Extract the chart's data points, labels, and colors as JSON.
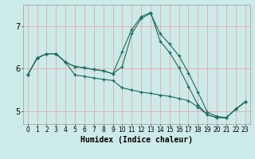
{
  "xlabel": "Humidex (Indice chaleur)",
  "ylabel": "",
  "xlim": [
    -0.5,
    23.5
  ],
  "ylim": [
    4.7,
    7.5
  ],
  "bg_color": "#cceae8",
  "grid_color": "#e8a8a8",
  "line_color": "#1a6b60",
  "line1_x": [
    0,
    1,
    2,
    3,
    4,
    5,
    6,
    7,
    8,
    9,
    10,
    11,
    12,
    13,
    14,
    15,
    16,
    17,
    18,
    19,
    20,
    21,
    22,
    23
  ],
  "line1_y": [
    5.85,
    6.25,
    6.35,
    6.35,
    6.15,
    5.85,
    5.82,
    5.78,
    5.75,
    5.72,
    5.55,
    5.5,
    5.45,
    5.42,
    5.38,
    5.35,
    5.3,
    5.25,
    5.1,
    4.92,
    4.85,
    4.85,
    5.05,
    5.22
  ],
  "line2_x": [
    0,
    1,
    2,
    3,
    4,
    5,
    6,
    7,
    8,
    9,
    10,
    11,
    12,
    13,
    14,
    15,
    16,
    17,
    18,
    19,
    20,
    21,
    22,
    23
  ],
  "line2_y": [
    5.85,
    6.25,
    6.35,
    6.35,
    6.15,
    6.05,
    6.02,
    5.98,
    5.95,
    5.88,
    6.05,
    6.82,
    7.18,
    7.3,
    6.82,
    6.58,
    6.3,
    5.9,
    5.45,
    4.98,
    4.88,
    4.85,
    5.05,
    5.22
  ],
  "line3_x": [
    0,
    1,
    2,
    3,
    4,
    5,
    6,
    7,
    8,
    9,
    10,
    11,
    12,
    13,
    14,
    15,
    16,
    17,
    18,
    19,
    20,
    21,
    22,
    23
  ],
  "line3_y": [
    5.85,
    6.25,
    6.35,
    6.35,
    6.15,
    6.05,
    6.02,
    5.98,
    5.95,
    5.88,
    6.4,
    6.92,
    7.22,
    7.32,
    6.65,
    6.38,
    6.02,
    5.58,
    5.15,
    4.92,
    4.85,
    4.85,
    5.05,
    5.22
  ],
  "yticks": [
    5,
    6,
    7
  ],
  "xticks": [
    0,
    1,
    2,
    3,
    4,
    5,
    6,
    7,
    8,
    9,
    10,
    11,
    12,
    13,
    14,
    15,
    16,
    17,
    18,
    19,
    20,
    21,
    22,
    23
  ],
  "xtick_fontsize": 5.5,
  "ytick_fontsize": 7,
  "xlabel_fontsize": 7
}
